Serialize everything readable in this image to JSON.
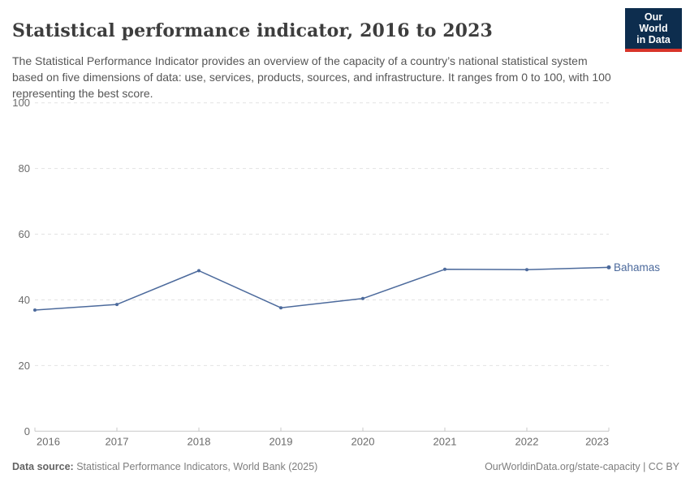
{
  "header": {
    "title": "Statistical performance indicator, 2016 to 2023",
    "subtitle": "The Statistical Performance Indicator provides an overview of the capacity of a country’s national statistical system based on five dimensions of data: use, services, products, sources, and infrastructure. It ranges from 0 to 100, with 100 representing the best score.",
    "logo_line1": "Our World",
    "logo_line2": "in Data",
    "logo_bg_color": "#0d2d4e",
    "logo_accent_color": "#d8352a"
  },
  "chart_data": {
    "type": "line",
    "title": "Statistical performance indicator, 2016 to 2023",
    "x": [
      2016,
      2017,
      2018,
      2019,
      2020,
      2021,
      2022,
      2023
    ],
    "series": [
      {
        "name": "Bahamas",
        "values": [
          36.9,
          38.6,
          48.9,
          37.6,
          40.4,
          49.3,
          49.2,
          49.9
        ],
        "color": "#4c6a9c"
      }
    ],
    "xlabel": "",
    "ylabel": "",
    "ylim": [
      0,
      100
    ],
    "yticks": [
      0,
      20,
      40,
      60,
      80,
      100
    ],
    "grid": true,
    "gridline_color": "#e2e2e2",
    "axis_color": "#c8c8c8",
    "legend_position": "right-of-line-end"
  },
  "footer": {
    "datasource_label": "Data source:",
    "datasource_text": " Statistical Performance Indicators, World Bank (2025)",
    "attribution": "OurWorldinData.org/state-capacity | CC BY"
  }
}
